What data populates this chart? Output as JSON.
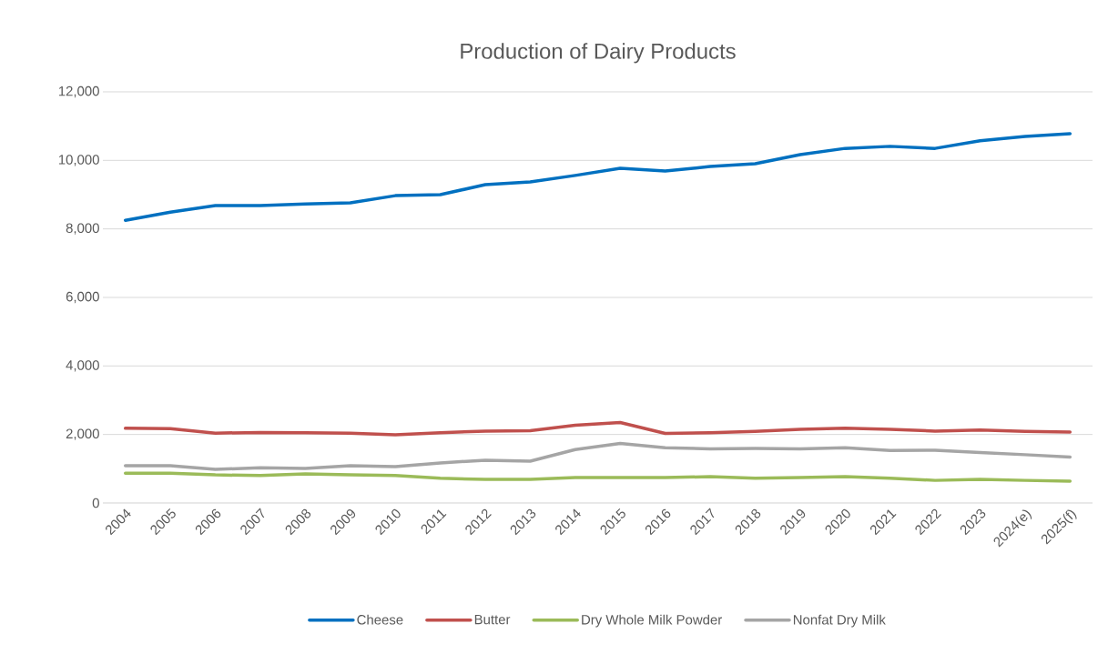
{
  "chart_data": {
    "type": "line",
    "title": "Production of Dairy Products",
    "categories": [
      "2004",
      "2005",
      "2006",
      "2007",
      "2008",
      "2009",
      "2010",
      "2011",
      "2012",
      "2013",
      "2014",
      "2015",
      "2016",
      "2017",
      "2018",
      "2019",
      "2020",
      "2021",
      "2022",
      "2023",
      "2024(e)",
      "2025(f)"
    ],
    "series": [
      {
        "name": "Cheese",
        "color": "#0070c0",
        "values": [
          8250,
          8490,
          8680,
          8680,
          8730,
          8760,
          8970,
          9000,
          9290,
          9370,
          9560,
          9770,
          9690,
          9820,
          9900,
          10170,
          10350,
          10410,
          10350,
          10570,
          10700,
          10780
        ]
      },
      {
        "name": "Butter",
        "color": "#c0504d",
        "values": [
          2180,
          2170,
          2040,
          2060,
          2050,
          2040,
          1990,
          2050,
          2100,
          2110,
          2270,
          2350,
          2030,
          2050,
          2090,
          2150,
          2180,
          2150,
          2100,
          2130,
          2090,
          2070
        ]
      },
      {
        "name": "Dry Whole Milk Powder",
        "color": "#9bbb59",
        "values": [
          870,
          870,
          820,
          800,
          850,
          820,
          800,
          720,
          690,
          690,
          740,
          740,
          740,
          770,
          720,
          740,
          770,
          720,
          660,
          690,
          660,
          640
        ]
      },
      {
        "name": "Nonfat Dry Milk",
        "color": "#a5a5a5",
        "values": [
          1090,
          1090,
          980,
          1030,
          1010,
          1090,
          1060,
          1170,
          1250,
          1220,
          1560,
          1740,
          1610,
          1580,
          1590,
          1580,
          1610,
          1530,
          1540,
          1470,
          1410,
          1340
        ]
      }
    ],
    "ylim": [
      0,
      12000
    ],
    "yticks": [
      {
        "value": 0,
        "label": "0"
      },
      {
        "value": 2000,
        "label": "2,000"
      },
      {
        "value": 4000,
        "label": "4,000"
      },
      {
        "value": 6000,
        "label": "6,000"
      },
      {
        "value": 8000,
        "label": "8,000"
      },
      {
        "value": 10000,
        "label": "10,000"
      },
      {
        "value": 12000,
        "label": "12,000"
      }
    ],
    "grid": "y",
    "legend": "bottom",
    "marker": "none",
    "line_style": "solid"
  }
}
